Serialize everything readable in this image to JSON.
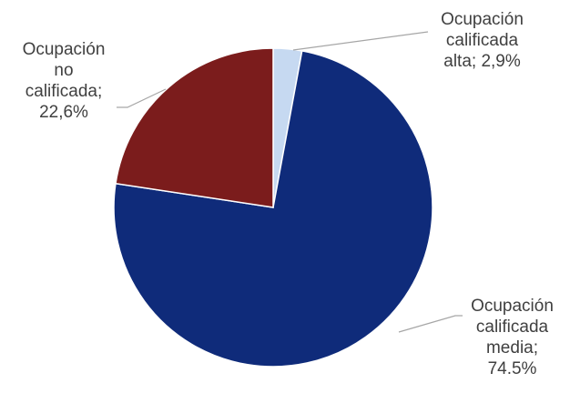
{
  "chart_data": {
    "type": "pie",
    "values": [
      2.9,
      74.5,
      22.6
    ],
    "value_labels": [
      "Ocupación\ncalificada\nalta; 2,9%",
      "Ocupación\ncalificada\nmedia;\n74.5%",
      "Ocupación\nno\ncalificada;\n22,6%"
    ],
    "colors": [
      "#c6d9f1",
      "#0f2b7a",
      "#7b1c1c"
    ]
  }
}
